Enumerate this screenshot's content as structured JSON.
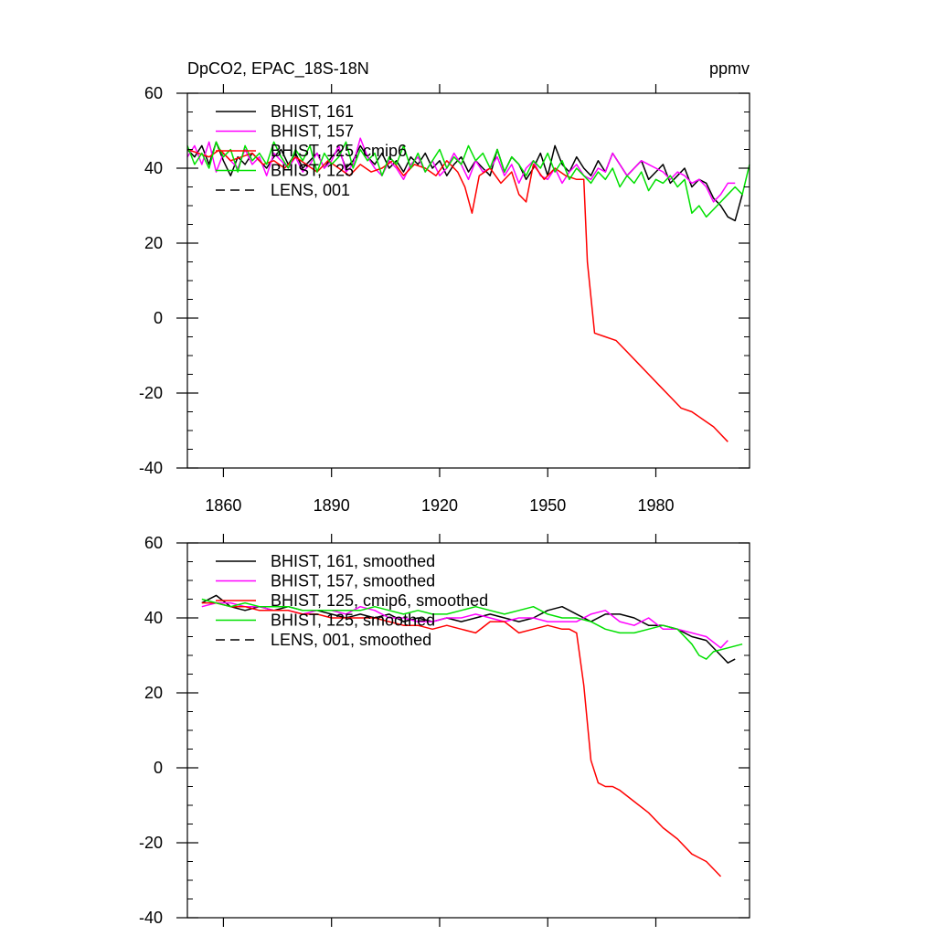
{
  "chart_data": [
    {
      "type": "line",
      "title": "DpCO2, EPAC_18S-18N",
      "units": "ppmv",
      "xlabel": "",
      "ylabel": "",
      "xlim": [
        1850,
        2006
      ],
      "ylim": [
        -40,
        60
      ],
      "x_ticks": [
        1860,
        1890,
        1920,
        1950,
        1980
      ],
      "y_ticks": [
        60,
        40,
        20,
        0,
        -20,
        -40
      ],
      "legend_position": "top-left",
      "series": [
        {
          "name": "BHIST, 161",
          "color": "#000000",
          "dash": "solid",
          "x": [
            1850,
            1852,
            1854,
            1856,
            1858,
            1860,
            1862,
            1864,
            1866,
            1868,
            1870,
            1872,
            1874,
            1876,
            1878,
            1880,
            1882,
            1884,
            1886,
            1888,
            1890,
            1892,
            1894,
            1896,
            1898,
            1900,
            1902,
            1904,
            1906,
            1908,
            1910,
            1912,
            1914,
            1916,
            1918,
            1920,
            1922,
            1924,
            1926,
            1928,
            1930,
            1932,
            1934,
            1936,
            1938,
            1940,
            1942,
            1944,
            1946,
            1948,
            1950,
            1952,
            1954,
            1956,
            1958,
            1960,
            1962,
            1964,
            1966,
            1968,
            1970,
            1972,
            1974,
            1976,
            1978,
            1980,
            1982,
            1984,
            1986,
            1988,
            1990,
            1992,
            1994,
            1996,
            1998,
            2000,
            2002,
            2004
          ],
          "values": [
            45,
            43,
            46,
            41,
            47,
            42,
            38,
            43,
            41,
            44,
            42,
            40,
            43,
            45,
            41,
            44,
            40,
            42,
            44,
            40,
            43,
            45,
            40,
            42,
            46,
            43,
            41,
            44,
            40,
            42,
            39,
            43,
            41,
            44,
            40,
            42,
            38,
            41,
            43,
            39,
            42,
            40,
            38,
            45,
            39,
            43,
            41,
            37,
            40,
            44,
            38,
            46,
            41,
            39,
            43,
            40,
            38,
            42,
            39,
            44,
            41,
            38,
            40,
            42,
            37,
            39,
            41,
            36,
            38,
            40,
            35,
            37,
            36,
            32,
            30,
            27,
            26,
            33
          ]
        },
        {
          "name": "BHIST, 157",
          "color": "#ff00ff",
          "dash": "solid",
          "x": [
            1850,
            1852,
            1854,
            1856,
            1858,
            1860,
            1862,
            1864,
            1866,
            1868,
            1870,
            1872,
            1874,
            1876,
            1878,
            1880,
            1882,
            1884,
            1886,
            1888,
            1890,
            1892,
            1894,
            1896,
            1898,
            1900,
            1902,
            1904,
            1906,
            1908,
            1910,
            1912,
            1914,
            1916,
            1918,
            1920,
            1922,
            1924,
            1926,
            1928,
            1930,
            1932,
            1934,
            1936,
            1938,
            1940,
            1942,
            1944,
            1946,
            1948,
            1950,
            1952,
            1954,
            1956,
            1958,
            1960,
            1962,
            1964,
            1966,
            1968,
            1970,
            1972,
            1974,
            1976,
            1978,
            1980,
            1982,
            1984,
            1986,
            1988,
            1990,
            1992,
            1994,
            1996,
            1998,
            2000,
            2002
          ],
          "values": [
            43,
            46,
            41,
            47,
            39,
            44,
            42,
            40,
            45,
            41,
            43,
            38,
            44,
            42,
            40,
            43,
            39,
            41,
            44,
            40,
            42,
            46,
            39,
            41,
            48,
            43,
            40,
            38,
            42,
            40,
            37,
            41,
            43,
            39,
            42,
            38,
            40,
            44,
            41,
            37,
            42,
            39,
            40,
            43,
            38,
            41,
            36,
            40,
            42,
            38,
            37,
            40,
            36,
            39,
            41,
            38,
            37,
            40,
            39,
            44,
            41,
            38,
            40,
            42,
            41,
            40,
            39,
            37,
            39,
            38,
            36,
            37,
            35,
            31,
            33,
            36,
            36
          ]
        },
        {
          "name": "BHIST, 125, cmip6",
          "color": "#ff0000",
          "dash": "solid",
          "x": [
            1850,
            1853,
            1856,
            1859,
            1862,
            1865,
            1868,
            1871,
            1874,
            1877,
            1880,
            1883,
            1886,
            1889,
            1892,
            1895,
            1898,
            1901,
            1904,
            1907,
            1910,
            1913,
            1916,
            1919,
            1922,
            1925,
            1927,
            1929,
            1931,
            1934,
            1937,
            1940,
            1942,
            1944,
            1946,
            1949,
            1952,
            1955,
            1958,
            1960,
            1961,
            1963,
            1966,
            1969,
            1972,
            1975,
            1978,
            1981,
            1984,
            1987,
            1990,
            1993,
            1996,
            2000
          ],
          "values": [
            45,
            44,
            43,
            45,
            42,
            43,
            44,
            41,
            42,
            40,
            43,
            41,
            39,
            42,
            40,
            38,
            41,
            39,
            40,
            42,
            38,
            41,
            40,
            38,
            42,
            39,
            35,
            28,
            38,
            40,
            36,
            39,
            33,
            31,
            41,
            37,
            40,
            38,
            37,
            37,
            15,
            -4,
            -5,
            -6,
            -9,
            -12,
            -15,
            -18,
            -21,
            -24,
            -25,
            -27,
            -29,
            -33
          ]
        },
        {
          "name": "BHIST, 125",
          "color": "#00e000",
          "dash": "solid",
          "x": [
            1850,
            1852,
            1854,
            1856,
            1858,
            1860,
            1862,
            1864,
            1866,
            1868,
            1870,
            1872,
            1874,
            1876,
            1878,
            1880,
            1882,
            1884,
            1886,
            1888,
            1890,
            1892,
            1894,
            1896,
            1898,
            1900,
            1902,
            1904,
            1906,
            1908,
            1910,
            1912,
            1914,
            1916,
            1918,
            1920,
            1922,
            1924,
            1926,
            1928,
            1930,
            1932,
            1934,
            1936,
            1938,
            1940,
            1942,
            1944,
            1946,
            1948,
            1950,
            1952,
            1954,
            1956,
            1958,
            1960,
            1962,
            1964,
            1966,
            1968,
            1970,
            1972,
            1974,
            1976,
            1978,
            1980,
            1982,
            1984,
            1986,
            1988,
            1990,
            1992,
            1994,
            1996,
            1998,
            2000,
            2002,
            2004,
            2006
          ],
          "values": [
            46,
            41,
            44,
            40,
            47,
            43,
            45,
            39,
            46,
            42,
            44,
            41,
            47,
            43,
            40,
            45,
            42,
            46,
            39,
            44,
            41,
            43,
            47,
            40,
            45,
            42,
            44,
            38,
            43,
            41,
            46,
            40,
            44,
            39,
            42,
            45,
            40,
            43,
            41,
            46,
            42,
            44,
            40,
            45,
            39,
            43,
            41,
            38,
            42,
            40,
            44,
            39,
            42,
            37,
            40,
            38,
            36,
            39,
            37,
            40,
            35,
            38,
            36,
            39,
            34,
            37,
            36,
            38,
            35,
            37,
            28,
            30,
            27,
            29,
            31,
            33,
            35,
            33,
            41
          ]
        },
        {
          "name": "LENS, 001",
          "color": "#000000",
          "dash": "dashed",
          "x": [],
          "values": []
        }
      ]
    },
    {
      "type": "line",
      "title": "",
      "xlabel": "",
      "ylabel": "",
      "xlim": [
        1850,
        2006
      ],
      "ylim": [
        -40,
        60
      ],
      "y_ticks": [
        60,
        40,
        20,
        0,
        -20,
        -40
      ],
      "legend_position": "top-left",
      "series": [
        {
          "name": "BHIST, 161, smoothed",
          "color": "#000000",
          "dash": "solid",
          "x": [
            1854,
            1858,
            1862,
            1866,
            1870,
            1874,
            1878,
            1882,
            1886,
            1890,
            1894,
            1898,
            1902,
            1906,
            1910,
            1914,
            1918,
            1922,
            1926,
            1930,
            1934,
            1938,
            1942,
            1946,
            1950,
            1954,
            1958,
            1962,
            1966,
            1970,
            1974,
            1978,
            1982,
            1986,
            1990,
            1994,
            1998,
            2000,
            2002
          ],
          "values": [
            44,
            46,
            43,
            42,
            43,
            42,
            43,
            42,
            42,
            41,
            40,
            41,
            40,
            41,
            39,
            40,
            39,
            40,
            39,
            40,
            41,
            40,
            39,
            40,
            42,
            43,
            41,
            39,
            41,
            41,
            40,
            38,
            38,
            37,
            35,
            34,
            30,
            28,
            29
          ]
        },
        {
          "name": "BHIST, 157, smoothed",
          "color": "#ff00ff",
          "dash": "solid",
          "x": [
            1854,
            1858,
            1862,
            1866,
            1870,
            1874,
            1878,
            1882,
            1886,
            1890,
            1894,
            1898,
            1902,
            1906,
            1910,
            1914,
            1918,
            1922,
            1926,
            1930,
            1934,
            1938,
            1942,
            1946,
            1950,
            1954,
            1958,
            1962,
            1966,
            1970,
            1974,
            1978,
            1982,
            1986,
            1990,
            1994,
            1998,
            2000
          ],
          "values": [
            43,
            44,
            44,
            43,
            43,
            42,
            42,
            41,
            42,
            42,
            41,
            43,
            42,
            40,
            40,
            39,
            39,
            40,
            40,
            41,
            40,
            39,
            40,
            40,
            39,
            39,
            39,
            41,
            42,
            39,
            38,
            40,
            37,
            37,
            36,
            35,
            32,
            34
          ]
        },
        {
          "name": "BHIST, 125, cmip6, smoothed",
          "color": "#ff0000",
          "dash": "solid",
          "x": [
            1854,
            1858,
            1862,
            1866,
            1870,
            1874,
            1878,
            1882,
            1886,
            1890,
            1894,
            1898,
            1902,
            1906,
            1910,
            1914,
            1918,
            1922,
            1926,
            1930,
            1934,
            1938,
            1942,
            1946,
            1950,
            1954,
            1956,
            1958,
            1960,
            1962,
            1964,
            1966,
            1968,
            1970,
            1974,
            1978,
            1982,
            1986,
            1990,
            1994,
            1998
          ],
          "values": [
            44,
            44,
            43,
            43,
            42,
            42,
            42,
            41,
            41,
            40,
            40,
            40,
            40,
            39,
            38,
            38,
            37,
            38,
            37,
            36,
            39,
            39,
            36,
            37,
            38,
            37,
            37,
            36,
            22,
            2,
            -4,
            -5,
            -5,
            -6,
            -9,
            -12,
            -16,
            -19,
            -23,
            -25,
            -29
          ]
        },
        {
          "name": "BHIST, 125, smoothed",
          "color": "#00e000",
          "dash": "solid",
          "x": [
            1854,
            1858,
            1862,
            1866,
            1870,
            1874,
            1878,
            1882,
            1886,
            1890,
            1894,
            1898,
            1902,
            1906,
            1910,
            1914,
            1918,
            1922,
            1926,
            1930,
            1934,
            1938,
            1942,
            1946,
            1950,
            1954,
            1958,
            1962,
            1966,
            1970,
            1974,
            1978,
            1982,
            1986,
            1990,
            1992,
            1994,
            1996,
            2000,
            2004
          ],
          "values": [
            45,
            44,
            43,
            44,
            43,
            43,
            43,
            42,
            42,
            42,
            42,
            42,
            43,
            42,
            41,
            42,
            41,
            41,
            42,
            43,
            42,
            41,
            42,
            43,
            41,
            40,
            40,
            39,
            37,
            36,
            36,
            37,
            38,
            37,
            33,
            30,
            29,
            31,
            32,
            33
          ]
        },
        {
          "name": "LENS, 001, smoothed",
          "color": "#000000",
          "dash": "dashed",
          "x": [],
          "values": []
        }
      ]
    }
  ]
}
